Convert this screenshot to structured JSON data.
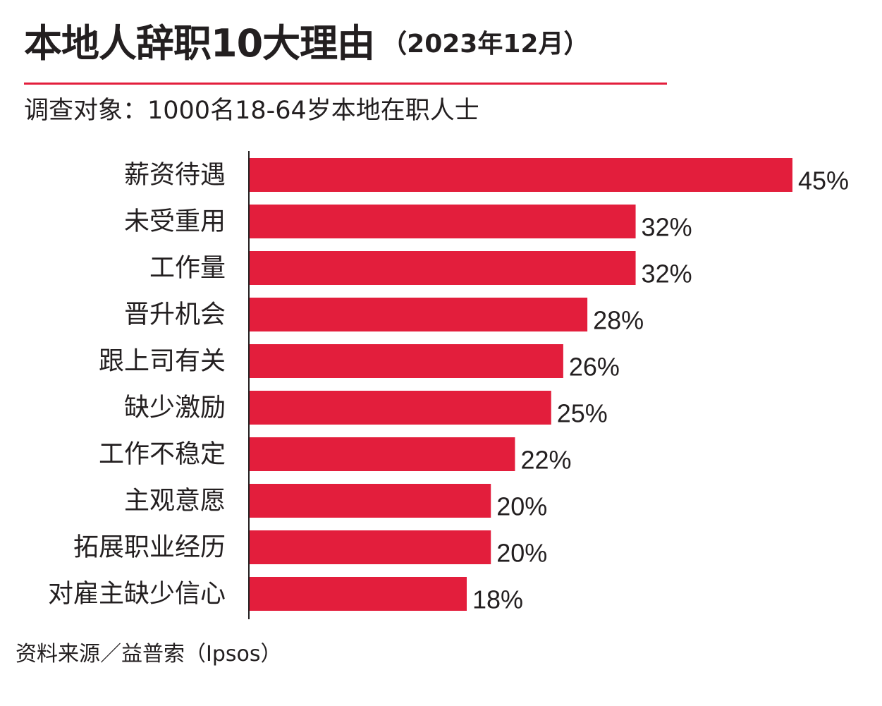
{
  "header": {
    "title": "本地人辞职10大理由",
    "title_note": "（2023年12月）",
    "subtitle": "调查对象：1000名18-64岁本地在职人士"
  },
  "footer": {
    "source": "资料来源／益普索（Ipsos）"
  },
  "colors": {
    "bar": "#e31e3c",
    "axis": "#231f20",
    "text": "#231f20"
  },
  "chart_data": {
    "type": "bar",
    "orientation": "horizontal",
    "categories": [
      "薪资待遇",
      "未受重用",
      "工作量",
      "晋升机会",
      "跟上司有关",
      "缺少激励",
      "工作不稳定",
      "主观意愿",
      "拓展职业经历",
      "对雇主缺少信心"
    ],
    "values": [
      45,
      32,
      32,
      28,
      26,
      25,
      22,
      20,
      20,
      18
    ],
    "value_labels": [
      "45%",
      "32%",
      "32%",
      "28%",
      "26%",
      "25%",
      "22%",
      "20%",
      "20%",
      "18%"
    ],
    "unit": "%",
    "xlim": [
      0,
      45
    ],
    "grid": false
  }
}
